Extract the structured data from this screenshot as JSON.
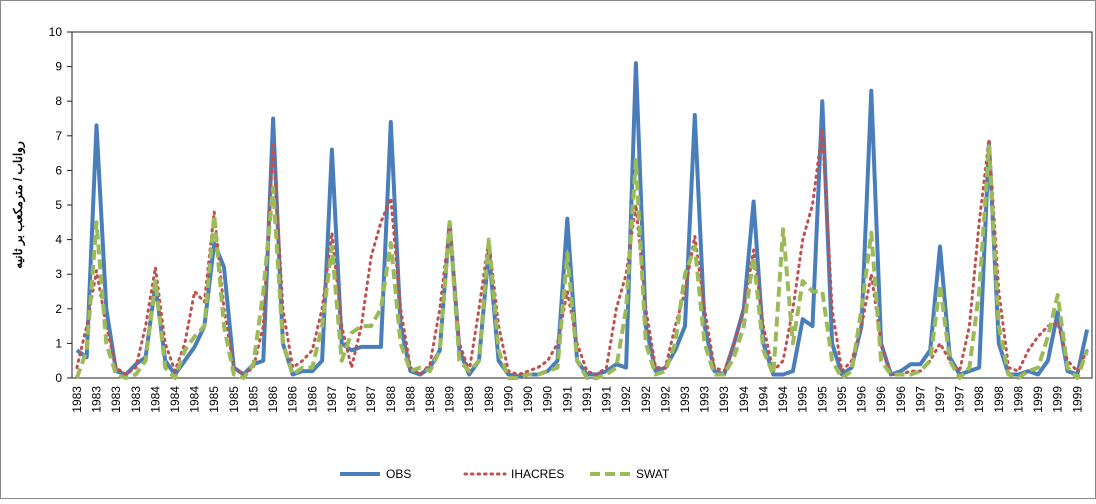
{
  "chart_data": {
    "type": "line",
    "y_label": "رواناب / مترمکعب بر ثانیه",
    "categories": [
      "1983",
      null,
      "1983",
      null,
      "1983",
      null,
      "1983",
      null,
      "1984",
      null,
      "1984",
      null,
      "1984",
      null,
      "1985",
      null,
      "1985",
      null,
      "1985",
      null,
      "1986",
      null,
      "1986",
      null,
      "1986",
      null,
      "1987",
      null,
      "1987",
      null,
      "1987",
      null,
      "1988",
      null,
      "1988",
      null,
      "1988",
      null,
      "1989",
      null,
      "1989",
      null,
      "1989",
      null,
      "1990",
      null,
      "1990",
      null,
      "1990",
      null,
      "1991",
      null,
      "1991",
      null,
      "1991",
      null,
      "1992",
      null,
      "1992",
      null,
      "1992",
      null,
      "1993",
      null,
      "1993",
      null,
      "1993",
      null,
      "1994",
      null,
      "1994",
      null,
      "1994",
      null,
      "1995",
      null,
      "1995",
      null,
      "1995",
      null,
      "1996",
      null,
      "1996",
      null,
      "1996",
      null,
      "1997",
      null,
      "1997",
      null,
      "1997",
      null,
      "1998",
      null,
      "1998",
      null,
      "1998",
      null,
      "1999",
      null,
      "1999",
      null,
      "1999",
      null
    ],
    "series": [
      {
        "name": "OBS",
        "color": "#4a7ebb",
        "style": "solid",
        "values": [
          0.8,
          0.6,
          7.3,
          2.0,
          0.2,
          0.1,
          0.4,
          0.6,
          2.7,
          0.5,
          0.1,
          0.5,
          0.9,
          1.5,
          3.9,
          3.2,
          0.3,
          0.1,
          0.4,
          0.5,
          7.5,
          1.0,
          0.1,
          0.2,
          0.2,
          0.5,
          6.6,
          1.0,
          0.8,
          0.9,
          0.9,
          0.9,
          7.4,
          1.5,
          0.2,
          0.1,
          0.3,
          0.8,
          4.5,
          0.8,
          0.1,
          0.5,
          3.7,
          0.5,
          0.1,
          0.05,
          0.1,
          0.1,
          0.2,
          0.5,
          4.6,
          0.5,
          0.1,
          0.1,
          0.2,
          0.4,
          0.3,
          9.1,
          1.5,
          0.2,
          0.3,
          0.8,
          1.5,
          7.6,
          1.5,
          0.2,
          0.1,
          1.0,
          2.0,
          5.1,
          1.0,
          0.1,
          0.1,
          0.2,
          1.7,
          1.5,
          8.0,
          1.0,
          0.1,
          0.3,
          1.5,
          8.3,
          1.0,
          0.1,
          0.2,
          0.4,
          0.4,
          0.8,
          3.8,
          0.6,
          0.1,
          0.2,
          0.3,
          6.8,
          1.0,
          0.1,
          0.1,
          0.2,
          0.1,
          0.5,
          1.9,
          0.2,
          0.1,
          1.4
        ]
      },
      {
        "name": "IHACRES",
        "color": "#c0504d",
        "style": "dotted",
        "values": [
          0.3,
          1.5,
          3.1,
          1.5,
          0.3,
          0.1,
          0.3,
          1.5,
          3.2,
          1.0,
          0.2,
          1.0,
          2.5,
          2.2,
          4.8,
          2.0,
          0.3,
          0.1,
          0.3,
          1.5,
          6.8,
          2.0,
          0.3,
          0.5,
          0.8,
          2.0,
          4.2,
          1.5,
          0.3,
          1.5,
          3.5,
          4.5,
          5.2,
          2.0,
          0.3,
          0.1,
          0.4,
          2.0,
          4.4,
          1.0,
          0.2,
          2.0,
          4.0,
          1.5,
          0.2,
          0.1,
          0.2,
          0.3,
          0.5,
          1.0,
          2.5,
          1.0,
          0.2,
          0.1,
          0.3,
          2.0,
          3.0,
          5.0,
          2.0,
          0.3,
          0.3,
          1.5,
          2.5,
          4.1,
          2.0,
          0.3,
          0.2,
          1.0,
          2.0,
          3.7,
          1.5,
          0.2,
          0.5,
          2.0,
          4.0,
          5.0,
          7.2,
          2.0,
          0.2,
          0.5,
          1.5,
          3.0,
          1.0,
          0.1,
          0.1,
          0.2,
          0.2,
          0.5,
          1.0,
          0.5,
          0.2,
          1.5,
          4.5,
          6.9,
          2.5,
          0.3,
          0.2,
          0.8,
          1.2,
          1.5,
          1.6,
          0.5,
          0.2,
          0.8
        ]
      },
      {
        "name": "SWAT",
        "color": "#9bbb59",
        "style": "dashed",
        "values": [
          0.0,
          0.8,
          4.5,
          1.0,
          0.1,
          0.0,
          0.1,
          0.5,
          2.8,
          0.3,
          0.0,
          0.8,
          1.2,
          1.5,
          4.7,
          1.5,
          0.1,
          0.0,
          0.4,
          2.5,
          5.5,
          1.0,
          0.1,
          0.3,
          0.3,
          1.5,
          3.8,
          0.5,
          1.3,
          1.5,
          1.5,
          2.0,
          3.9,
          1.0,
          0.2,
          0.3,
          0.2,
          0.8,
          4.5,
          0.5,
          0.2,
          0.5,
          4.0,
          0.8,
          0.0,
          0.0,
          0.1,
          0.1,
          0.2,
          0.3,
          3.6,
          0.5,
          0.0,
          0.0,
          0.1,
          0.3,
          2.0,
          6.3,
          1.0,
          0.1,
          0.2,
          1.0,
          3.0,
          3.8,
          1.0,
          0.1,
          0.1,
          0.6,
          1.5,
          3.5,
          0.8,
          0.1,
          4.3,
          1.0,
          2.8,
          2.5,
          2.5,
          0.5,
          0.0,
          0.2,
          2.0,
          4.2,
          0.5,
          0.1,
          0.1,
          0.1,
          0.2,
          0.5,
          2.7,
          0.5,
          0.0,
          0.3,
          2.5,
          6.7,
          1.5,
          0.1,
          0.0,
          0.2,
          0.3,
          1.2,
          2.4,
          0.3,
          0.0,
          0.8
        ]
      }
    ],
    "ylim": [
      0,
      10
    ],
    "yticks": [
      0,
      1,
      2,
      3,
      4,
      5,
      6,
      7,
      8,
      9,
      10
    ],
    "grid": false,
    "legend": "bottom"
  }
}
